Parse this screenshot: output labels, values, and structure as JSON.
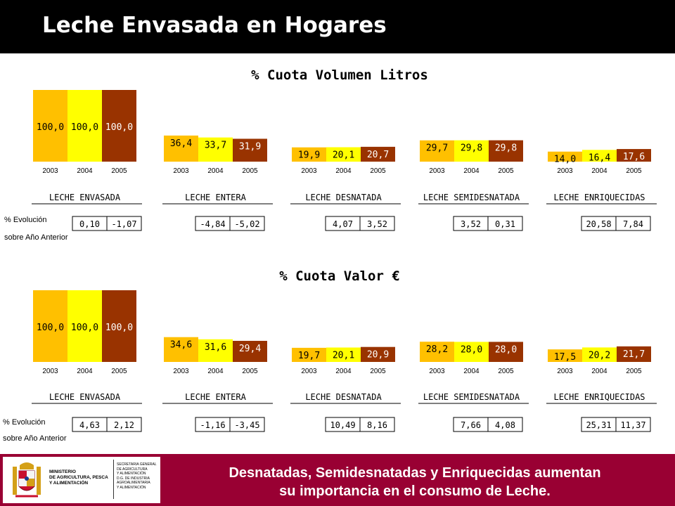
{
  "header": {
    "title": "Leche Envasada en Hogares"
  },
  "evol_label": {
    "line1": "% Evolución",
    "line2": "sobre Año Anterior"
  },
  "footer": {
    "line1": "Desnatadas, Semidesnatadas y Enriquecidas aumentan",
    "line2": "su importancia en el consumo de Leche."
  },
  "logo": {
    "ministry_lines": [
      "MINISTERIO",
      "DE AGRICULTURA, PESCA",
      "Y ALIMENTACIÓN"
    ],
    "secretaria_lines": [
      "SECRETARIA GENERAL",
      "DE AGRICULTURA",
      "Y ALIMENTACIÓN",
      "D.G. DE INDUSTRIA",
      "AGROALIMENTARIA",
      "Y ALIMENTACIÓN"
    ]
  },
  "colors": {
    "y2003": "#FFC000",
    "y2004": "#FFFF00",
    "y2005": "#993300",
    "header_bg": "#000000",
    "footer_bg": "#990033"
  },
  "chart_data": [
    {
      "type": "bar",
      "title": "% Cuota Volumen Litros",
      "years": [
        "2003",
        "2004",
        "2005"
      ],
      "groups": [
        {
          "name": "LECHE ENVASADA",
          "values": [
            100.0,
            100.0,
            100.0
          ],
          "labels": [
            "100,0",
            "100,0",
            "100,0"
          ],
          "evolution": [
            "0,10",
            "-1,07"
          ]
        },
        {
          "name": "LECHE ENTERA",
          "values": [
            36.4,
            33.7,
            31.9
          ],
          "labels": [
            "36,4",
            "33,7",
            "31,9"
          ],
          "evolution": [
            "-4,84",
            "-5,02"
          ]
        },
        {
          "name": "LECHE DESNATADA",
          "values": [
            19.9,
            20.1,
            20.7
          ],
          "labels": [
            "19,9",
            "20,1",
            "20,7"
          ],
          "evolution": [
            "4,07",
            "3,52"
          ]
        },
        {
          "name": "LECHE SEMIDESNATADA",
          "values": [
            29.7,
            29.8,
            29.8
          ],
          "labels": [
            "29,7",
            "29,8",
            "29,8"
          ],
          "evolution": [
            "3,52",
            "0,31"
          ]
        },
        {
          "name": "LECHE ENRIQUECIDAS",
          "values": [
            14.0,
            16.4,
            17.6
          ],
          "labels": [
            "14,0",
            "16,4",
            "17,6"
          ],
          "evolution": [
            "20,58",
            "7,84"
          ]
        }
      ]
    },
    {
      "type": "bar",
      "title": "% Cuota Valor €",
      "years": [
        "2003",
        "2004",
        "2005"
      ],
      "groups": [
        {
          "name": "LECHE ENVASADA",
          "values": [
            100.0,
            100.0,
            100.0
          ],
          "labels": [
            "100,0",
            "100,0",
            "100,0"
          ],
          "evolution": [
            "4,63",
            "2,12"
          ]
        },
        {
          "name": "LECHE ENTERA",
          "values": [
            34.6,
            31.6,
            29.4
          ],
          "labels": [
            "34,6",
            "31,6",
            "29,4"
          ],
          "evolution": [
            "-1,16",
            "-3,45"
          ]
        },
        {
          "name": "LECHE DESNATADA",
          "values": [
            19.7,
            20.1,
            20.9
          ],
          "labels": [
            "19,7",
            "20,1",
            "20,9"
          ],
          "evolution": [
            "10,49",
            "8,16"
          ]
        },
        {
          "name": "LECHE SEMIDESNATADA",
          "values": [
            28.2,
            28.0,
            28.0
          ],
          "labels": [
            "28,2",
            "28,0",
            "28,0"
          ],
          "evolution": [
            "7,66",
            "4,08"
          ]
        },
        {
          "name": "LECHE ENRIQUECIDAS",
          "values": [
            17.5,
            20.2,
            21.7
          ],
          "labels": [
            "17,5",
            "20,2",
            "21,7"
          ],
          "evolution": [
            "25,31",
            "11,37"
          ]
        }
      ]
    }
  ]
}
